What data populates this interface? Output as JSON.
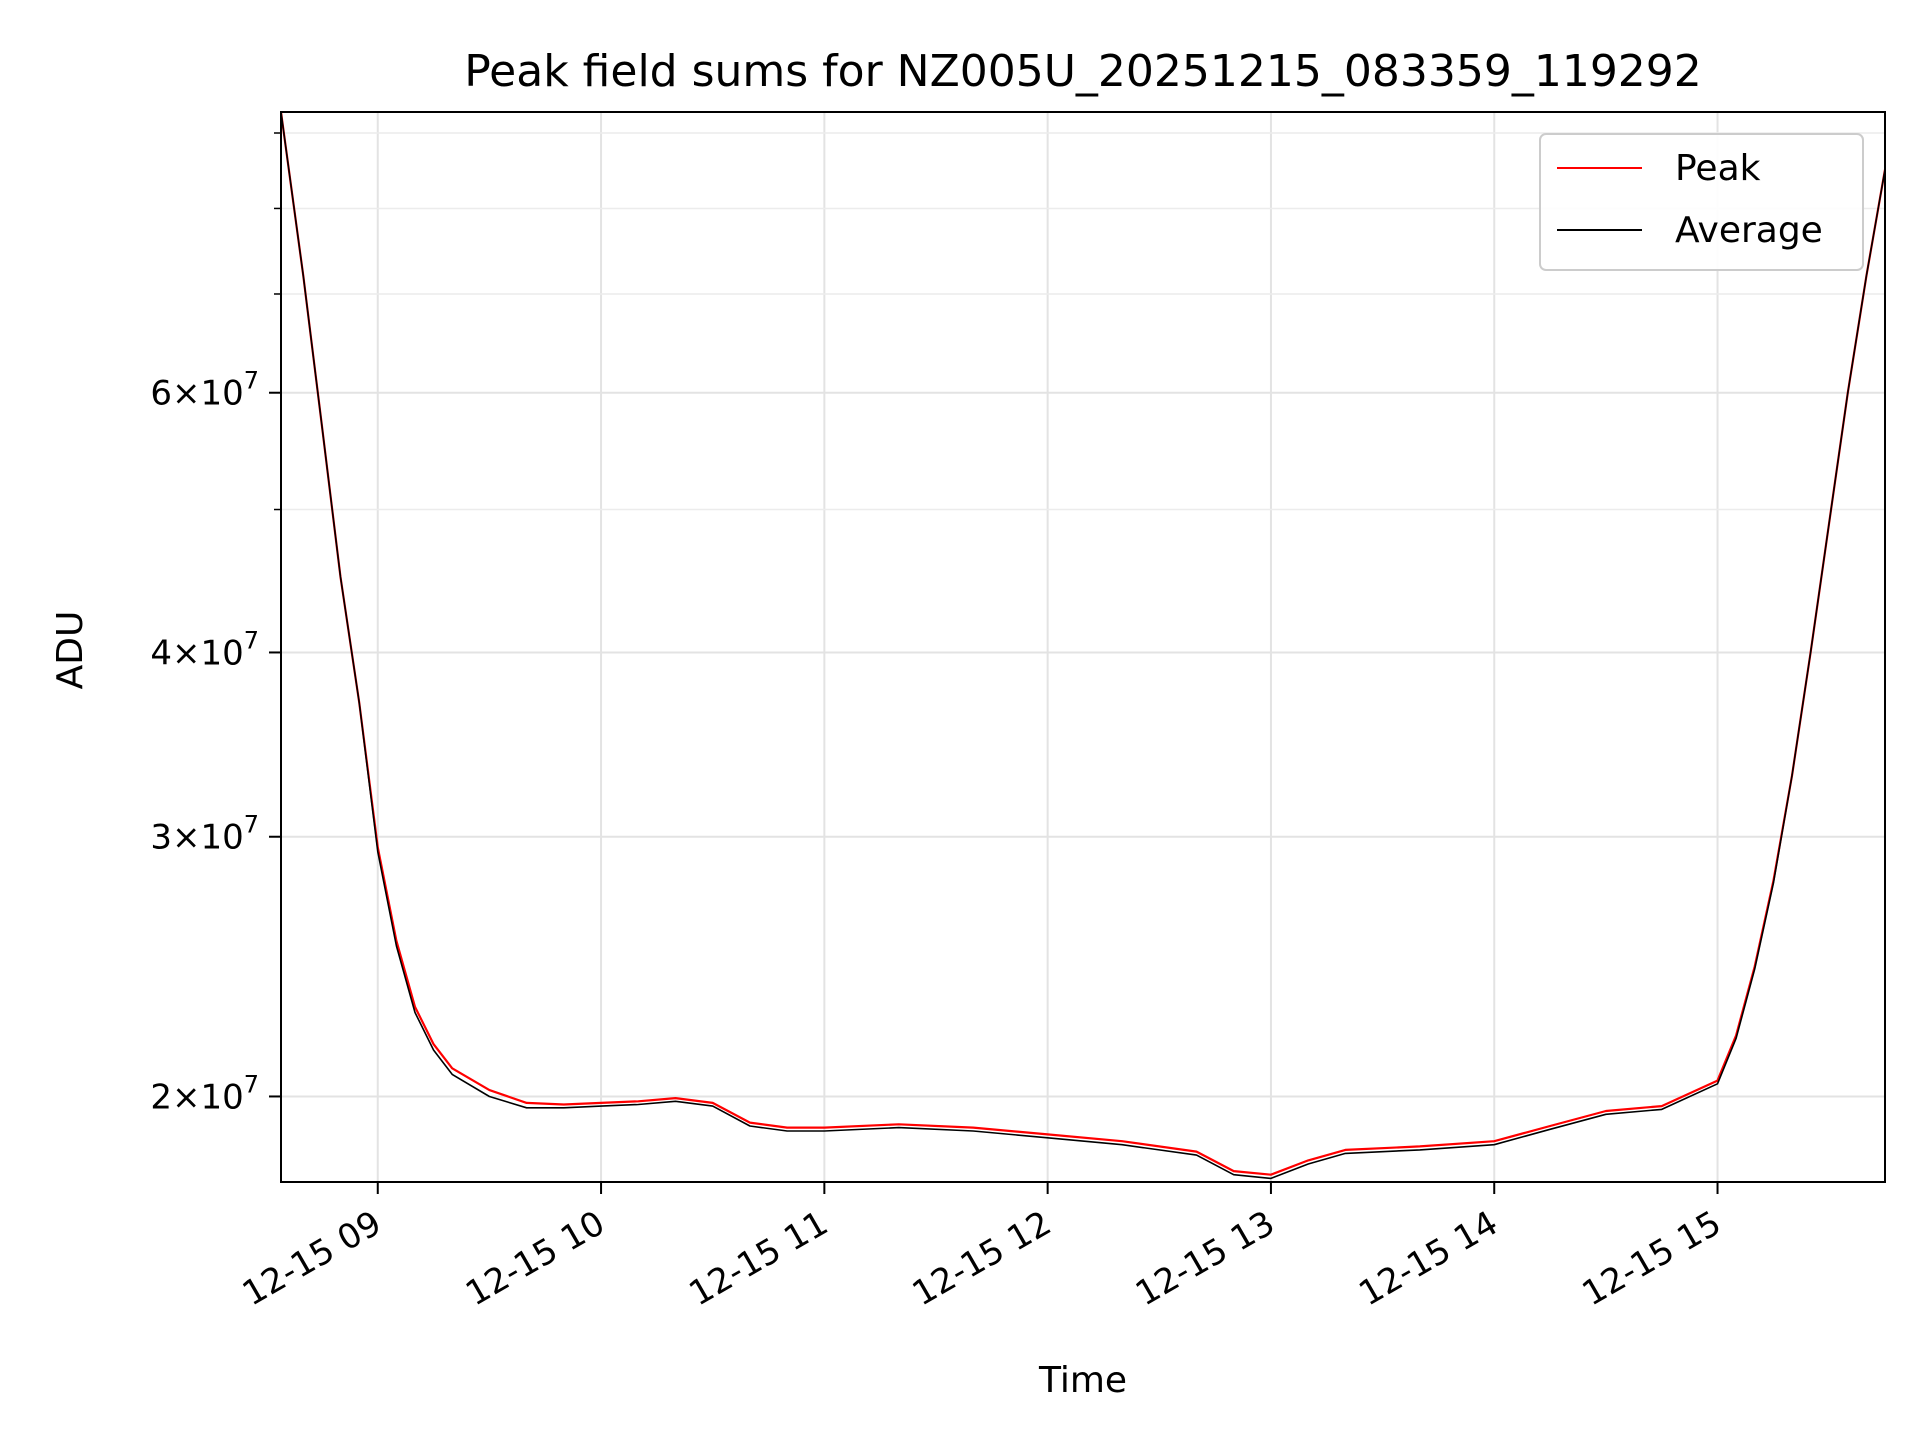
{
  "chart_data": {
    "type": "line",
    "title": "Peak field sums for NZ005U_20251215_083359_119292",
    "xlabel": "Time",
    "ylabel": "ADU",
    "y_scale": "log",
    "grid": true,
    "legend_position": "upper right",
    "xlim": [
      "2025-12-15 08:34",
      "2025-12-15 15:45"
    ],
    "ylim": [
      17500000,
      93000000
    ],
    "x_ticks": [
      {
        "value": "2025-12-15 09:00",
        "label": "12-15 09"
      },
      {
        "value": "2025-12-15 10:00",
        "label": "12-15 10"
      },
      {
        "value": "2025-12-15 11:00",
        "label": "12-15 11"
      },
      {
        "value": "2025-12-15 12:00",
        "label": "12-15 12"
      },
      {
        "value": "2025-12-15 13:00",
        "label": "12-15 13"
      },
      {
        "value": "2025-12-15 14:00",
        "label": "12-15 14"
      },
      {
        "value": "2025-12-15 15:00",
        "label": "12-15 15"
      }
    ],
    "y_major_ticks": [
      {
        "value": 20000000,
        "mantissa": "2",
        "exp": "7"
      },
      {
        "value": 30000000,
        "mantissa": "3",
        "exp": "7"
      },
      {
        "value": 40000000,
        "mantissa": "4",
        "exp": "7"
      },
      {
        "value": 60000000,
        "mantissa": "6",
        "exp": "7"
      }
    ],
    "y_minor_ticks": [
      50000000,
      70000000,
      80000000,
      90000000
    ],
    "series": [
      {
        "name": "Peak",
        "color": "#ff0000",
        "x": [
          "2025-12-15 08:34",
          "2025-12-15 08:40",
          "2025-12-15 08:45",
          "2025-12-15 08:50",
          "2025-12-15 08:55",
          "2025-12-15 09:00",
          "2025-12-15 09:05",
          "2025-12-15 09:10",
          "2025-12-15 09:15",
          "2025-12-15 09:20",
          "2025-12-15 09:30",
          "2025-12-15 09:40",
          "2025-12-15 09:50",
          "2025-12-15 10:00",
          "2025-12-15 10:10",
          "2025-12-15 10:20",
          "2025-12-15 10:30",
          "2025-12-15 10:40",
          "2025-12-15 10:50",
          "2025-12-15 11:00",
          "2025-12-15 11:20",
          "2025-12-15 11:40",
          "2025-12-15 12:00",
          "2025-12-15 12:20",
          "2025-12-15 12:40",
          "2025-12-15 12:50",
          "2025-12-15 13:00",
          "2025-12-15 13:10",
          "2025-12-15 13:20",
          "2025-12-15 13:40",
          "2025-12-15 14:00",
          "2025-12-15 14:15",
          "2025-12-15 14:30",
          "2025-12-15 14:45",
          "2025-12-15 15:00",
          "2025-12-15 15:05",
          "2025-12-15 15:10",
          "2025-12-15 15:15",
          "2025-12-15 15:20",
          "2025-12-15 15:25",
          "2025-12-15 15:30",
          "2025-12-15 15:35",
          "2025-12-15 15:40",
          "2025-12-15 15:45"
        ],
        "values": [
          93000000,
          72000000,
          57000000,
          45000000,
          37000000,
          29500000,
          25500000,
          23000000,
          21700000,
          20900000,
          20200000,
          19800000,
          19750000,
          19800000,
          19850000,
          19950000,
          19800000,
          19200000,
          19050000,
          19050000,
          19150000,
          19050000,
          18850000,
          18650000,
          18350000,
          17800000,
          17700000,
          18100000,
          18400000,
          18500000,
          18650000,
          19100000,
          19550000,
          19700000,
          20500000,
          22000000,
          24500000,
          28000000,
          33000000,
          40000000,
          49000000,
          60000000,
          72000000,
          85000000
        ]
      },
      {
        "name": "Average",
        "color": "#000000",
        "x": [
          "2025-12-15 08:34",
          "2025-12-15 08:40",
          "2025-12-15 08:45",
          "2025-12-15 08:50",
          "2025-12-15 08:55",
          "2025-12-15 09:00",
          "2025-12-15 09:05",
          "2025-12-15 09:10",
          "2025-12-15 09:15",
          "2025-12-15 09:20",
          "2025-12-15 09:30",
          "2025-12-15 09:40",
          "2025-12-15 09:50",
          "2025-12-15 10:00",
          "2025-12-15 10:10",
          "2025-12-15 10:20",
          "2025-12-15 10:30",
          "2025-12-15 10:40",
          "2025-12-15 10:50",
          "2025-12-15 11:00",
          "2025-12-15 11:20",
          "2025-12-15 11:40",
          "2025-12-15 12:00",
          "2025-12-15 12:20",
          "2025-12-15 12:40",
          "2025-12-15 12:50",
          "2025-12-15 13:00",
          "2025-12-15 13:10",
          "2025-12-15 13:20",
          "2025-12-15 13:40",
          "2025-12-15 14:00",
          "2025-12-15 14:15",
          "2025-12-15 14:30",
          "2025-12-15 14:45",
          "2025-12-15 15:00",
          "2025-12-15 15:05",
          "2025-12-15 15:10",
          "2025-12-15 15:15",
          "2025-12-15 15:20",
          "2025-12-15 15:25",
          "2025-12-15 15:30",
          "2025-12-15 15:35",
          "2025-12-15 15:40",
          "2025-12-15 15:45"
        ],
        "values": [
          93000000,
          72000000,
          57000000,
          45000000,
          37000000,
          29300000,
          25300000,
          22800000,
          21500000,
          20700000,
          20000000,
          19650000,
          19650000,
          19700000,
          19750000,
          19850000,
          19700000,
          19100000,
          18950000,
          18950000,
          19050000,
          18950000,
          18750000,
          18550000,
          18250000,
          17700000,
          17600000,
          18000000,
          18300000,
          18400000,
          18550000,
          19000000,
          19450000,
          19600000,
          20400000,
          21900000,
          24400000,
          27900000,
          33000000,
          40000000,
          49000000,
          60000000,
          72000000,
          85000000
        ]
      }
    ]
  }
}
